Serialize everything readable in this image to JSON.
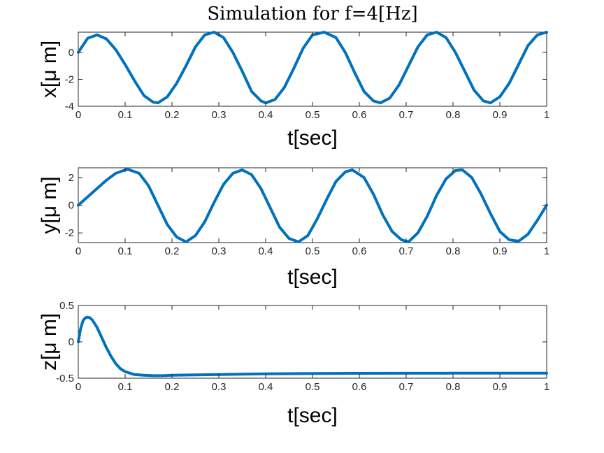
{
  "chart_data": [
    {
      "type": "line",
      "title": "Simulation for f=4[Hz]",
      "xlabel": "t[sec]",
      "ylabel": "x[μ m]",
      "xlim": [
        0,
        1
      ],
      "ylim": [
        -4,
        1.5
      ],
      "xticks": [
        "0",
        "0.1",
        "0.2",
        "0.3",
        "0.4",
        "0.5",
        "0.6",
        "0.7",
        "0.8",
        "0.9",
        "1"
      ],
      "yticks": [
        "-4",
        "-2",
        "0"
      ],
      "grid": false,
      "color": "#0072BD",
      "x": [
        0,
        0.02,
        0.04,
        0.06,
        0.08,
        0.1,
        0.12,
        0.14,
        0.16,
        0.17,
        0.19,
        0.21,
        0.23,
        0.25,
        0.27,
        0.29,
        0.31,
        0.33,
        0.35,
        0.37,
        0.39,
        0.4,
        0.42,
        0.44,
        0.46,
        0.48,
        0.5,
        0.525,
        0.55,
        0.57,
        0.59,
        0.61,
        0.63,
        0.645,
        0.665,
        0.685,
        0.705,
        0.725,
        0.745,
        0.765,
        0.785,
        0.805,
        0.825,
        0.845,
        0.865,
        0.88,
        0.9,
        0.92,
        0.94,
        0.96,
        0.98,
        1.0
      ],
      "values": [
        0.0,
        1.05,
        1.3,
        1.0,
        0.2,
        -0.9,
        -2.1,
        -3.2,
        -3.7,
        -3.75,
        -3.3,
        -2.3,
        -1.0,
        0.4,
        1.3,
        1.5,
        1.1,
        0.0,
        -1.4,
        -2.9,
        -3.6,
        -3.75,
        -3.5,
        -2.6,
        -1.2,
        0.3,
        1.3,
        1.5,
        1.1,
        0.0,
        -1.5,
        -2.9,
        -3.6,
        -3.75,
        -3.4,
        -2.4,
        -1.0,
        0.4,
        1.3,
        1.5,
        1.1,
        0.0,
        -1.4,
        -2.8,
        -3.6,
        -3.75,
        -3.3,
        -2.3,
        -0.9,
        0.5,
        1.3,
        1.5
      ]
    },
    {
      "type": "line",
      "xlabel": "t[sec]",
      "ylabel": "y[μ m]",
      "xlim": [
        0,
        1
      ],
      "ylim": [
        -2.7,
        2.7
      ],
      "xticks": [
        "0",
        "0.1",
        "0.2",
        "0.3",
        "0.4",
        "0.5",
        "0.6",
        "0.7",
        "0.8",
        "0.9",
        "1"
      ],
      "yticks": [
        "-2",
        "0",
        "2"
      ],
      "grid": false,
      "color": "#0072BD",
      "x": [
        0,
        0.02,
        0.04,
        0.06,
        0.08,
        0.105,
        0.13,
        0.15,
        0.17,
        0.19,
        0.21,
        0.23,
        0.25,
        0.27,
        0.29,
        0.31,
        0.33,
        0.35,
        0.37,
        0.39,
        0.41,
        0.43,
        0.45,
        0.47,
        0.49,
        0.51,
        0.53,
        0.55,
        0.57,
        0.585,
        0.61,
        0.63,
        0.65,
        0.67,
        0.69,
        0.705,
        0.725,
        0.745,
        0.765,
        0.785,
        0.805,
        0.82,
        0.84,
        0.86,
        0.88,
        0.9,
        0.92,
        0.94,
        0.96,
        0.98,
        1.0
      ],
      "values": [
        0.0,
        0.6,
        1.2,
        1.8,
        2.3,
        2.6,
        2.3,
        1.4,
        0.0,
        -1.4,
        -2.3,
        -2.65,
        -2.2,
        -1.2,
        0.2,
        1.5,
        2.3,
        2.55,
        2.2,
        1.2,
        -0.2,
        -1.6,
        -2.4,
        -2.65,
        -2.2,
        -1.0,
        0.4,
        1.7,
        2.4,
        2.55,
        2.0,
        0.8,
        -0.7,
        -1.9,
        -2.5,
        -2.65,
        -2.0,
        -0.8,
        0.7,
        1.9,
        2.5,
        2.55,
        2.0,
        0.8,
        -0.6,
        -1.9,
        -2.5,
        -2.6,
        -2.1,
        -1.1,
        0.0
      ]
    },
    {
      "type": "line",
      "xlabel": "t[sec]",
      "ylabel": "z[μ m]",
      "xlim": [
        0,
        1
      ],
      "ylim": [
        -0.5,
        0.5
      ],
      "xticks": [
        "0",
        "0.1",
        "0.2",
        "0.3",
        "0.4",
        "0.5",
        "0.6",
        "0.7",
        "0.8",
        "0.9",
        "1"
      ],
      "yticks": [
        "-0.5",
        "0",
        "0.5"
      ],
      "grid": false,
      "color": "#0072BD",
      "x": [
        0,
        0.005,
        0.01,
        0.015,
        0.02,
        0.025,
        0.03,
        0.04,
        0.05,
        0.06,
        0.07,
        0.08,
        0.09,
        0.1,
        0.12,
        0.14,
        0.16,
        0.18,
        0.2,
        0.25,
        0.3,
        0.35,
        0.4,
        0.5,
        0.6,
        0.7,
        0.8,
        0.9,
        1.0
      ],
      "values": [
        0.0,
        0.18,
        0.29,
        0.33,
        0.34,
        0.33,
        0.3,
        0.2,
        0.06,
        -0.08,
        -0.2,
        -0.3,
        -0.37,
        -0.41,
        -0.45,
        -0.46,
        -0.465,
        -0.465,
        -0.46,
        -0.455,
        -0.45,
        -0.445,
        -0.44,
        -0.435,
        -0.433,
        -0.432,
        -0.431,
        -0.431,
        -0.43
      ]
    }
  ]
}
